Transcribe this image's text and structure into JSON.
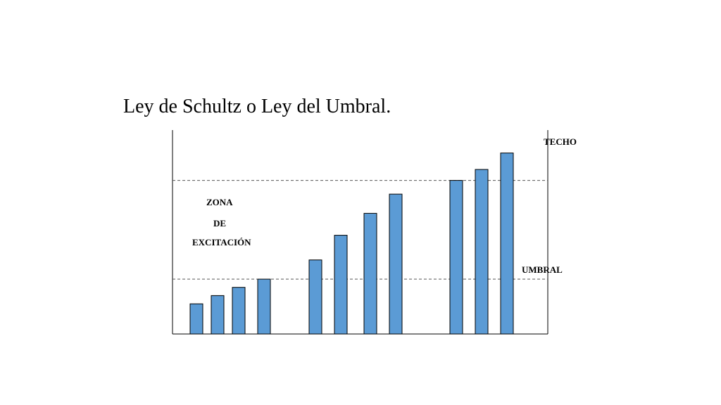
{
  "title": "Ley de Schultz o Ley del Umbral.",
  "labels": {
    "techo": "TECHO",
    "umbral": "UMBRAL",
    "zona_line1": "ZONA",
    "zona_line2": "DE",
    "zona_line3": "EXCITACIÓN"
  },
  "colors": {
    "bar_fill": "#5b9bd5",
    "bar_stroke": "#000000",
    "axis": "#000000",
    "dashed_line": "#555555"
  },
  "chart_data": {
    "type": "bar",
    "threshold_level": 1.0,
    "ceiling_level": 2.8,
    "groups": [
      {
        "values": [
          0.55,
          0.7,
          0.85,
          1.0
        ]
      },
      {
        "values": [
          1.35,
          1.8,
          2.2,
          2.55
        ]
      },
      {
        "values": [
          2.8,
          3.0,
          3.3
        ]
      }
    ]
  }
}
